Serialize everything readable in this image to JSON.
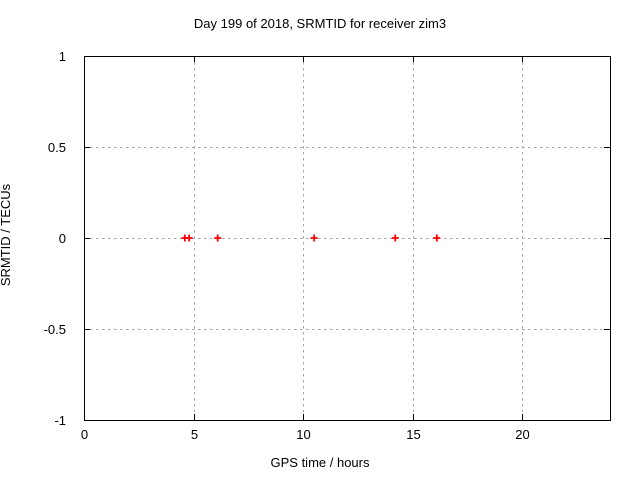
{
  "chart_data": {
    "type": "scatter",
    "title": "Day 199 of 2018, SRMTID for receiver zim3",
    "xlabel": "GPS time / hours",
    "ylabel": "SRMTID / TECUs",
    "xlim": [
      0,
      24
    ],
    "ylim": [
      -1,
      1
    ],
    "xticks": {
      "values": [
        0,
        5,
        10,
        15,
        20
      ],
      "labels": [
        "0",
        "5",
        "10",
        "15",
        "20"
      ]
    },
    "yticks": {
      "values": [
        1,
        0.5,
        0,
        -0.5,
        -1
      ],
      "labels": [
        "1",
        "0.5",
        "0",
        "-0.5",
        "-1"
      ]
    },
    "grid": true,
    "legend": "none",
    "series": [
      {
        "name": "SRMTID",
        "marker": "plus",
        "color": "#ff0000",
        "points": [
          {
            "x": 4.6,
            "y": 0
          },
          {
            "x": 4.8,
            "y": 0
          },
          {
            "x": 6.1,
            "y": 0
          },
          {
            "x": 10.5,
            "y": 0
          },
          {
            "x": 14.2,
            "y": 0
          },
          {
            "x": 16.1,
            "y": 0
          }
        ]
      }
    ]
  },
  "colors": {
    "background": "#ffffff",
    "axis": "#000000",
    "grid": "#a6a6a6",
    "text": "#000000",
    "marker": "#ff0000"
  }
}
